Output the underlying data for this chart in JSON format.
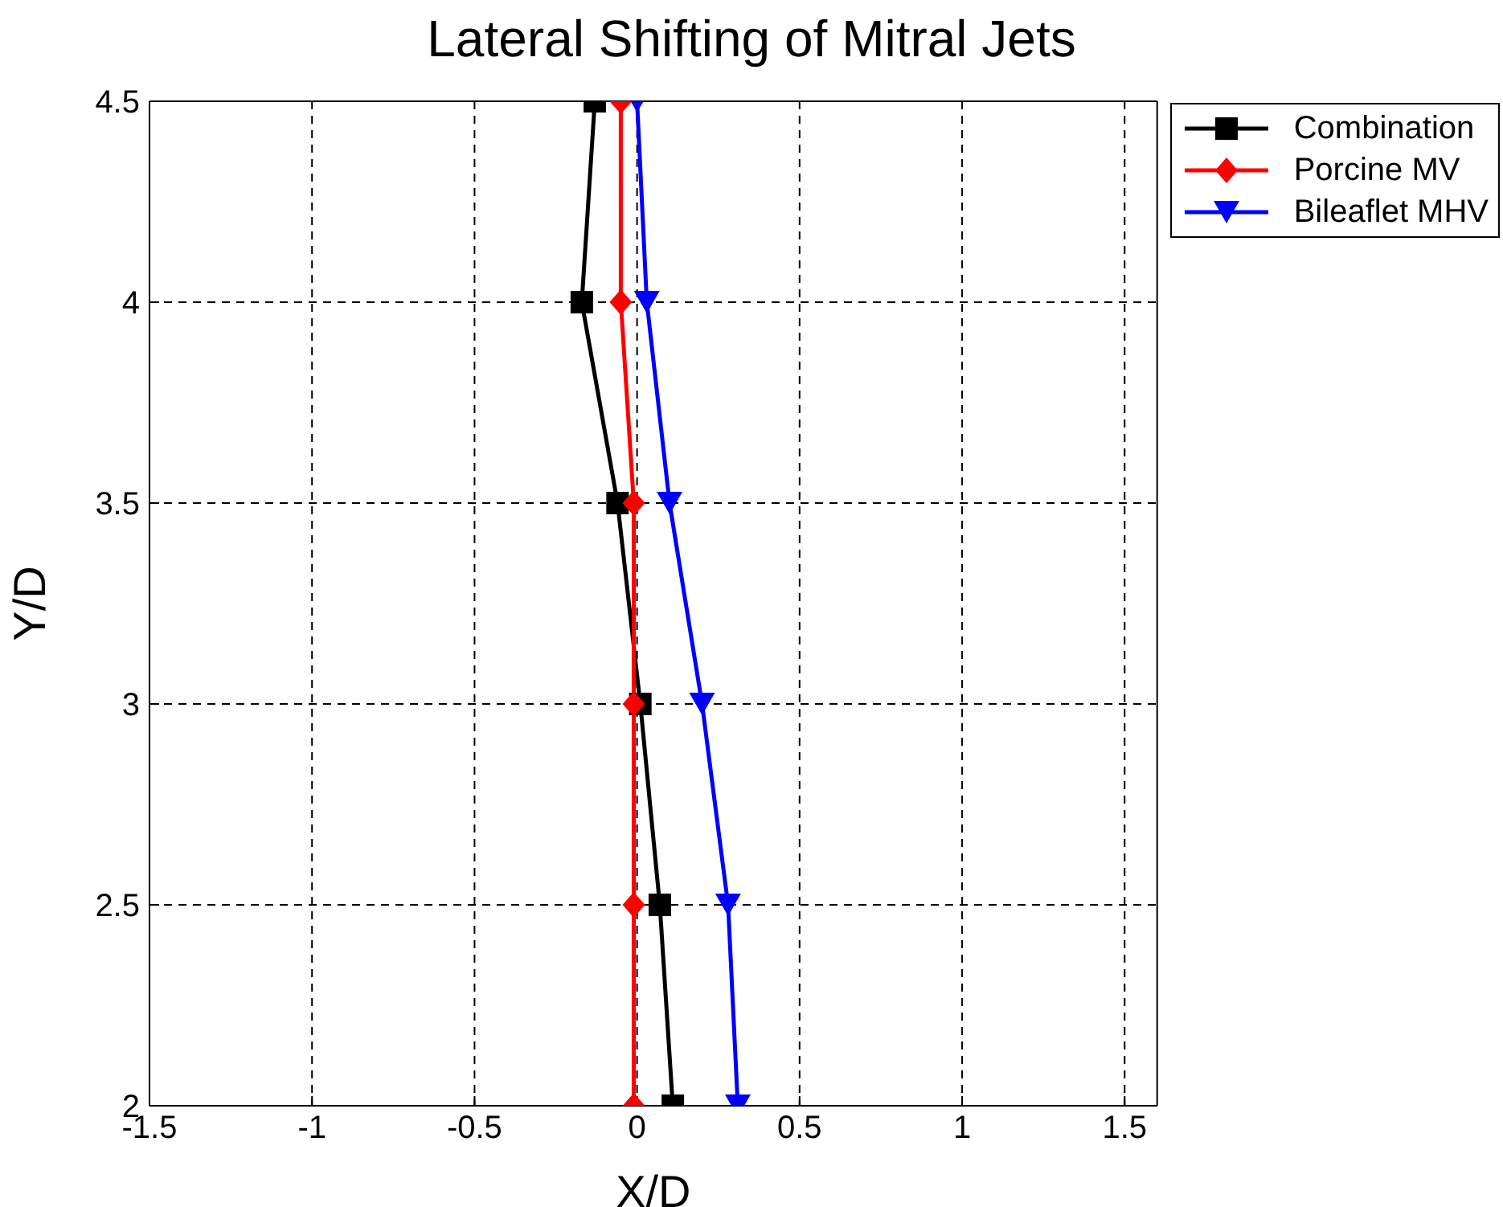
{
  "chart_data": {
    "type": "line",
    "title": "Lateral Shifting of Mitral Jets",
    "xlabel": "X/D",
    "ylabel": "Y/D",
    "series": [
      {
        "name": "Combination",
        "color": "#000000",
        "marker": "square",
        "x": [
          0.11,
          0.07,
          0.01,
          -0.06,
          -0.17,
          -0.13
        ],
        "values": [
          2,
          2.5,
          3,
          3.5,
          4,
          4.5
        ]
      },
      {
        "name": "Porcine MV",
        "color": "#ff0000",
        "marker": "diamond",
        "x": [
          -0.01,
          -0.01,
          -0.01,
          -0.01,
          -0.05,
          -0.05
        ],
        "values": [
          2,
          2.5,
          3,
          3.5,
          4,
          4.5
        ]
      },
      {
        "name": "Bileaflet MHV",
        "color": "#0000ff",
        "marker": "triangle",
        "x": [
          0.31,
          0.28,
          0.2,
          0.1,
          0.03,
          0.0
        ],
        "values": [
          2,
          2.5,
          3,
          3.5,
          4,
          4.5
        ]
      }
    ],
    "xlim": [
      -1.5,
      1.6
    ],
    "xticks": [
      -1.5,
      -1,
      -0.5,
      0,
      0.5,
      1,
      1.5
    ],
    "ylim": [
      2,
      4.5
    ],
    "yticks": [
      2,
      2.5,
      3,
      3.5,
      4,
      4.5
    ],
    "grid": true,
    "legend": "top right",
    "line_style": "solid"
  }
}
